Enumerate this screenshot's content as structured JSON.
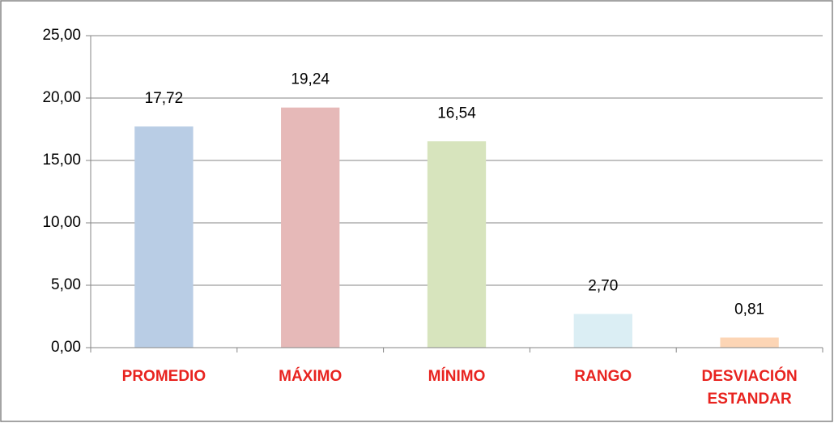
{
  "chart_data": {
    "type": "bar",
    "categories": [
      "PROMEDIO",
      "MÁXIMO",
      "MÍNIMO",
      "RANGO",
      "DESVIACIÓN ESTANDAR"
    ],
    "values": [
      17.72,
      19.24,
      16.54,
      2.7,
      0.81
    ],
    "value_labels": [
      "17,72",
      "19,24",
      "16,54",
      "2,70",
      "0,81"
    ],
    "colors": [
      "#b9cde5",
      "#e6b9b8",
      "#d7e4bd",
      "#dbeef4",
      "#fcd5b5"
    ],
    "category_label_color": "#e8231f",
    "ylim": [
      0,
      25
    ],
    "yticks": [
      {
        "value": 0,
        "label": "0,00"
      },
      {
        "value": 5,
        "label": "5,00"
      },
      {
        "value": 10,
        "label": "10,00"
      },
      {
        "value": 15,
        "label": "15,00"
      },
      {
        "value": 20,
        "label": "20,00"
      },
      {
        "value": 25,
        "label": "25,00"
      }
    ],
    "grid": true
  }
}
